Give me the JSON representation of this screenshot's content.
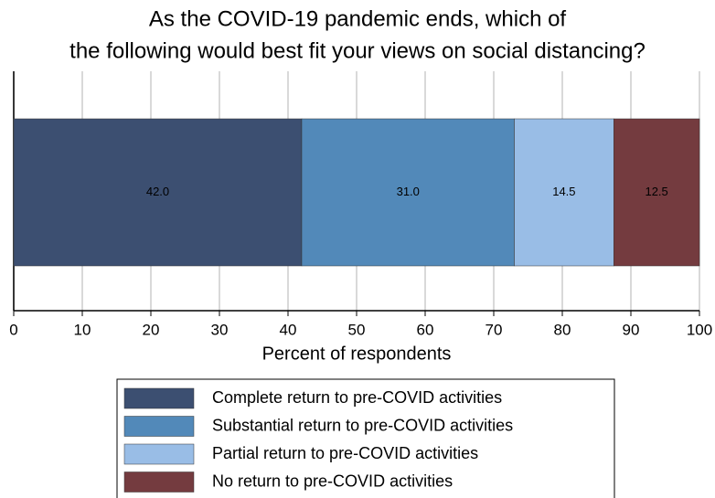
{
  "chart_data": {
    "type": "stacked-bar-horizontal",
    "title": [
      "As the COVID-19 pandemic ends, which of",
      "the following would best fit your views on social distancing?"
    ],
    "x_label": "Percent of respondents",
    "series": [
      {
        "name": "Complete return to pre-COVID activities",
        "color": "#3c4f71",
        "values": [
          42.0
        ],
        "value_labels": [
          "42.0"
        ]
      },
      {
        "name": "Substantial return to pre-COVID activities",
        "color": "#5289b9",
        "values": [
          31.0
        ],
        "value_labels": [
          "31.0"
        ]
      },
      {
        "name": "Partial return to pre-COVID activities",
        "color": "#99bde6",
        "values": [
          14.5
        ],
        "value_labels": [
          "14.5"
        ]
      },
      {
        "name": "No return to pre-COVID activities",
        "color": "#743b3f",
        "values": [
          12.5
        ],
        "value_labels": [
          "12.5"
        ]
      }
    ],
    "xlim": [
      0,
      100
    ],
    "xticks": [
      0,
      10,
      20,
      30,
      40,
      50,
      60,
      70,
      80,
      90,
      100
    ],
    "grid": true,
    "legend": "bottom"
  }
}
